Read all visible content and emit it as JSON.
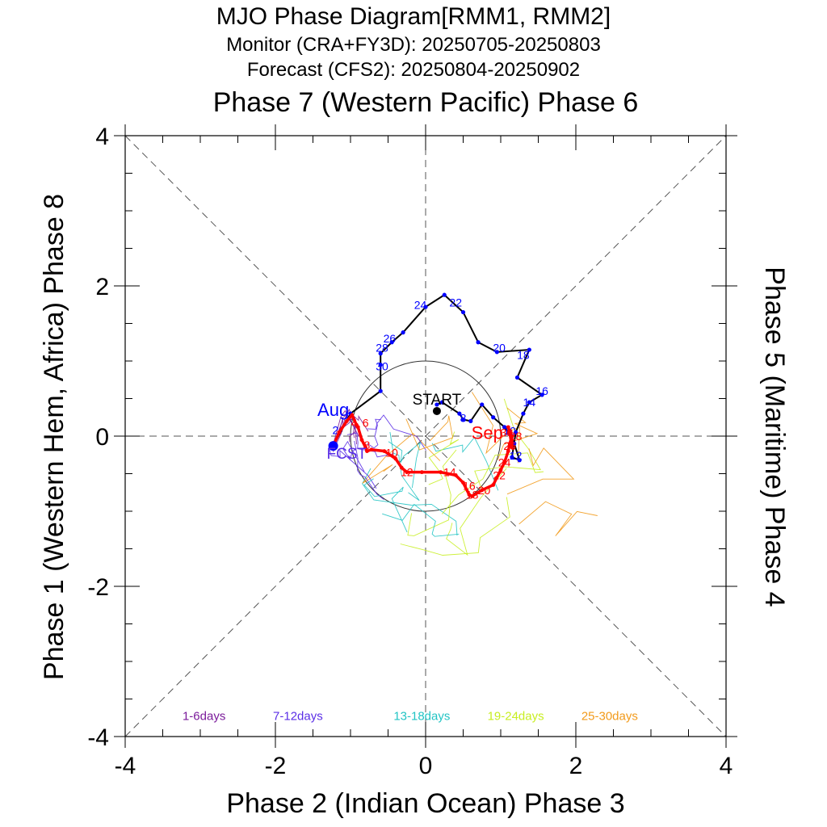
{
  "chart_data": {
    "type": "line",
    "title": "MJO Phase Diagram[RMM1, RMM2]",
    "subtitle_monitor": "Monitor (CRA+FY3D): 20250705-20250803",
    "subtitle_forecast": "Forecast (CFS2): 20250804-20250902",
    "top_label": "Phase 7 (Western Pacific) Phase 6",
    "xlabel": "Phase 2 (Indian Ocean) Phase 3",
    "ylabel": "Phase 1 (Western Hem, Africa) Phase 8",
    "right_label": "Phase 5 (Maritime) Phase 4",
    "xlim": [
      -4,
      4
    ],
    "ylim": [
      -4,
      4
    ],
    "x_ticks": [
      -4,
      -2,
      0,
      2,
      4
    ],
    "y_ticks": [
      -4,
      -2,
      0,
      2,
      4
    ],
    "x_tick_labels": [
      "-4",
      "-2",
      "0",
      "2",
      "4"
    ],
    "y_tick_labels": [
      "-4",
      "-2",
      "0",
      "2",
      "4"
    ],
    "unit_circle_radius": 1,
    "start_label": "START",
    "aug_label": "Aug",
    "sep_label": "Sep",
    "fcst_label": "FCST",
    "colors": {
      "monitor_line": "#000000",
      "monitor_points": "#0000ff",
      "monitor_labels": "#0000ff",
      "forecast": "#ff0000",
      "ens_1_6": "#7a1a9a",
      "ens_7_12": "#5a2ee6",
      "ens_13_18": "#22c4c4",
      "ens_19_24": "#c8ee22",
      "ens_25_30": "#f29a1a"
    },
    "legend": [
      "1-6days",
      "7-12days",
      "13-18days",
      "19-24days",
      "25-30days"
    ],
    "monitor": {
      "name": "Monitor",
      "points": [
        [
          0.15,
          0.42
        ],
        [
          0.22,
          0.45
        ],
        [
          0.45,
          0.3
        ],
        [
          0.5,
          0.22
        ],
        [
          0.6,
          0.2
        ],
        [
          0.75,
          0.42
        ],
        [
          0.9,
          0.25
        ],
        [
          1.05,
          0.12
        ],
        [
          1.1,
          0.05
        ],
        [
          1.18,
          -0.1
        ],
        [
          1.25,
          -0.32
        ],
        [
          1.15,
          -0.28
        ],
        [
          1.2,
          0.05
        ],
        [
          1.3,
          0.3
        ],
        [
          1.38,
          0.45
        ],
        [
          1.55,
          0.55
        ],
        [
          1.22,
          0.78
        ],
        [
          1.38,
          1.15
        ],
        [
          0.95,
          1.12
        ],
        [
          0.7,
          1.25
        ],
        [
          0.5,
          1.65
        ],
        [
          0.25,
          1.88
        ],
        [
          0.0,
          1.72
        ],
        [
          -0.3,
          1.38
        ],
        [
          -0.45,
          1.25
        ],
        [
          -0.6,
          1.1
        ],
        [
          -0.6,
          0.95
        ],
        [
          -0.6,
          0.6
        ],
        [
          -1.0,
          0.3
        ],
        [
          -1.23,
          -0.13
        ]
      ],
      "point_labels": [
        {
          "text": "8",
          "x": 0.5,
          "y": 0.24
        },
        {
          "text": "10",
          "x": 1.12,
          "y": 0.07
        },
        {
          "text": "12",
          "x": 1.2,
          "y": -0.26
        },
        {
          "text": "14",
          "x": 1.38,
          "y": 0.45
        },
        {
          "text": "16",
          "x": 1.55,
          "y": 0.6
        },
        {
          "text": "18",
          "x": 1.3,
          "y": 1.08
        },
        {
          "text": "20",
          "x": 0.98,
          "y": 1.18
        },
        {
          "text": "22",
          "x": 0.4,
          "y": 1.78
        },
        {
          "text": "24",
          "x": -0.07,
          "y": 1.75
        },
        {
          "text": "26",
          "x": -0.48,
          "y": 1.3
        },
        {
          "text": "28",
          "x": -0.58,
          "y": 1.18
        },
        {
          "text": "30",
          "x": -0.58,
          "y": 0.93
        },
        {
          "text": "2",
          "x": -1.2,
          "y": 0.08
        }
      ]
    },
    "forecast": {
      "name": "Forecast",
      "points": [
        [
          -1.23,
          -0.13
        ],
        [
          -1.15,
          0.05
        ],
        [
          -1.05,
          0.2
        ],
        [
          -0.98,
          0.28
        ],
        [
          -0.92,
          0.15
        ],
        [
          -0.9,
          0.12
        ],
        [
          -0.85,
          -0.05
        ],
        [
          -0.8,
          -0.15
        ],
        [
          -0.78,
          -0.2
        ],
        [
          -0.72,
          -0.18
        ],
        [
          -0.55,
          -0.2
        ],
        [
          -0.4,
          -0.3
        ],
        [
          -0.32,
          -0.42
        ],
        [
          -0.25,
          -0.48
        ],
        [
          -0.05,
          -0.48
        ],
        [
          0.2,
          -0.48
        ],
        [
          0.4,
          -0.52
        ],
        [
          0.5,
          -0.62
        ],
        [
          0.58,
          -0.78
        ],
        [
          0.62,
          -0.8
        ],
        [
          0.75,
          -0.72
        ],
        [
          0.9,
          -0.65
        ],
        [
          1.0,
          -0.45
        ],
        [
          1.05,
          -0.35
        ],
        [
          1.1,
          -0.2
        ],
        [
          1.12,
          -0.1
        ],
        [
          1.15,
          0.0
        ],
        [
          1.15,
          -0.15
        ],
        [
          1.12,
          0.05
        ],
        [
          1.1,
          0.12
        ]
      ],
      "point_labels": [
        {
          "text": "4",
          "x": -0.95,
          "y": 0.18
        },
        {
          "text": "6",
          "x": -0.8,
          "y": 0.18
        },
        {
          "text": "8",
          "x": -0.78,
          "y": -0.12
        },
        {
          "text": "10",
          "x": -0.45,
          "y": -0.22
        },
        {
          "text": "12",
          "x": -0.25,
          "y": -0.48
        },
        {
          "text": "14",
          "x": 0.32,
          "y": -0.48
        },
        {
          "text": "16",
          "x": 0.58,
          "y": -0.66
        },
        {
          "text": "18",
          "x": 0.62,
          "y": -0.78
        },
        {
          "text": "20",
          "x": 0.78,
          "y": -0.72
        },
        {
          "text": "22",
          "x": 0.98,
          "y": -0.52
        },
        {
          "text": "24",
          "x": 1.05,
          "y": -0.35
        },
        {
          "text": "26",
          "x": 1.12,
          "y": -0.13
        },
        {
          "text": "28",
          "x": 1.2,
          "y": 0.0
        },
        {
          "text": "30",
          "x": 1.08,
          "y": 0.05
        }
      ]
    },
    "ensemble_members": 6
  }
}
